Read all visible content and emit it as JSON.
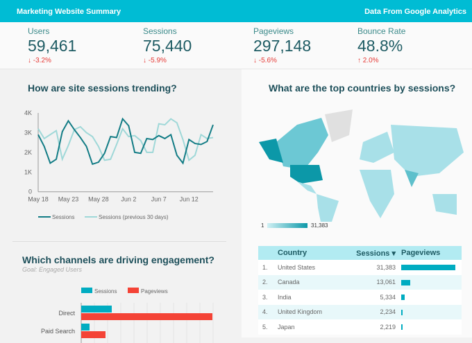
{
  "header": {
    "title": "Marketing Website Summary",
    "source": "Data From Google Analytics"
  },
  "kpis": [
    {
      "label": "Users",
      "value": "59,461",
      "change": "-3.2%",
      "direction": "down"
    },
    {
      "label": "Sessions",
      "value": "75,440",
      "change": "-5.9%",
      "direction": "down"
    },
    {
      "label": "Pageviews",
      "value": "297,148",
      "change": "-5.6%",
      "direction": "down"
    },
    {
      "label": "Bounce Rate",
      "value": "48.8%",
      "change": "2.0%",
      "direction": "up"
    }
  ],
  "trend": {
    "title": "How are site sessions trending?"
  },
  "map": {
    "title": "What are the top countries by sessions?",
    "legend_min": "1",
    "legend_max": "31,383"
  },
  "channels": {
    "title": "Which channels are driving engagement?",
    "subtitle": "Goal: Engaged Users"
  },
  "table": {
    "headers": [
      "Country",
      "Sessions ▾",
      "Pageviews"
    ],
    "rows": [
      {
        "rank": "1.",
        "country": "United States",
        "sessions": "31,383",
        "pageviews_share": 1.0
      },
      {
        "rank": "2.",
        "country": "Canada",
        "sessions": "13,061",
        "pageviews_share": 0.17
      },
      {
        "rank": "3.",
        "country": "India",
        "sessions": "5,334",
        "pageviews_share": 0.07
      },
      {
        "rank": "4.",
        "country": "United Kingdom",
        "sessions": "2,234",
        "pageviews_share": 0.03
      },
      {
        "rank": "5.",
        "country": "Japan",
        "sessions": "2,219",
        "pageviews_share": 0.03
      }
    ]
  },
  "chart_data": [
    {
      "type": "line",
      "x_start": "May 18",
      "x_ticks": [
        "May 18",
        "May 23",
        "May 28",
        "Jun 2",
        "Jun 7",
        "Jun 12"
      ],
      "y_ticks": [
        "0",
        "1K",
        "2K",
        "3K",
        "4K"
      ],
      "ylim": [
        0,
        4000
      ],
      "grid": false,
      "legend": "bottom",
      "series": [
        {
          "name": "Sessions",
          "color": "#127c85",
          "values": [
            2900,
            2300,
            1450,
            1650,
            3050,
            3600,
            3150,
            2750,
            2300,
            1400,
            1500,
            1950,
            2800,
            2750,
            3700,
            3350,
            2000,
            1950,
            2700,
            2650,
            2850,
            2700,
            2900,
            1850,
            1450,
            2650,
            2450,
            2400,
            2550,
            3400
          ]
        },
        {
          "name": "Sessions (previous 30 days)",
          "color": "#9fd8d8",
          "values": [
            3200,
            2700,
            2900,
            3100,
            1650,
            2350,
            3150,
            3300,
            3000,
            2800,
            2300,
            1600,
            1650,
            2400,
            3200,
            2800,
            2850,
            2600,
            2000,
            2000,
            3450,
            3400,
            3700,
            3500,
            2650,
            1600,
            1850,
            2900,
            2700,
            2750
          ]
        }
      ]
    },
    {
      "type": "bar",
      "orientation": "horizontal",
      "legend": "top",
      "categories": [
        "Direct",
        "Paid Search"
      ],
      "series": [
        {
          "name": "Sessions",
          "color": "#00acc1",
          "values": [
            44,
            12
          ]
        },
        {
          "name": "Pageviews",
          "color": "#f44336",
          "values": [
            189,
            35
          ]
        }
      ]
    }
  ]
}
